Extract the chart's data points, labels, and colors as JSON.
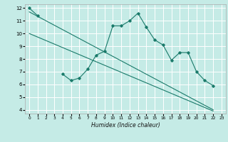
{
  "title": "",
  "xlabel": "Humidex (Indice chaleur)",
  "bg_color": "#c5ebe6",
  "grid_color": "#ffffff",
  "line_color": "#1a7a6a",
  "xlim": [
    -0.5,
    23.5
  ],
  "ylim": [
    3.7,
    12.3
  ],
  "xticks": [
    0,
    1,
    2,
    3,
    4,
    5,
    6,
    7,
    8,
    9,
    10,
    11,
    12,
    13,
    14,
    15,
    16,
    17,
    18,
    19,
    20,
    21,
    22,
    23
  ],
  "yticks": [
    4,
    5,
    6,
    7,
    8,
    9,
    10,
    11,
    12
  ],
  "main_line_x": [
    0,
    1,
    4,
    5,
    6,
    7,
    8,
    9,
    10,
    11,
    12,
    13,
    14,
    15,
    16,
    17,
    18,
    19,
    20,
    21,
    22
  ],
  "main_line_y": [
    12,
    11.4,
    6.8,
    6.3,
    6.5,
    7.2,
    8.3,
    8.6,
    10.6,
    10.6,
    11.0,
    11.6,
    10.5,
    9.5,
    9.1,
    7.9,
    8.5,
    8.5,
    7.0,
    6.3,
    5.9
  ],
  "upper_line_x": [
    0,
    22
  ],
  "upper_line_y": [
    11.7,
    4.0
  ],
  "lower_line_x": [
    0,
    22
  ],
  "lower_line_y": [
    10.0,
    3.9
  ]
}
